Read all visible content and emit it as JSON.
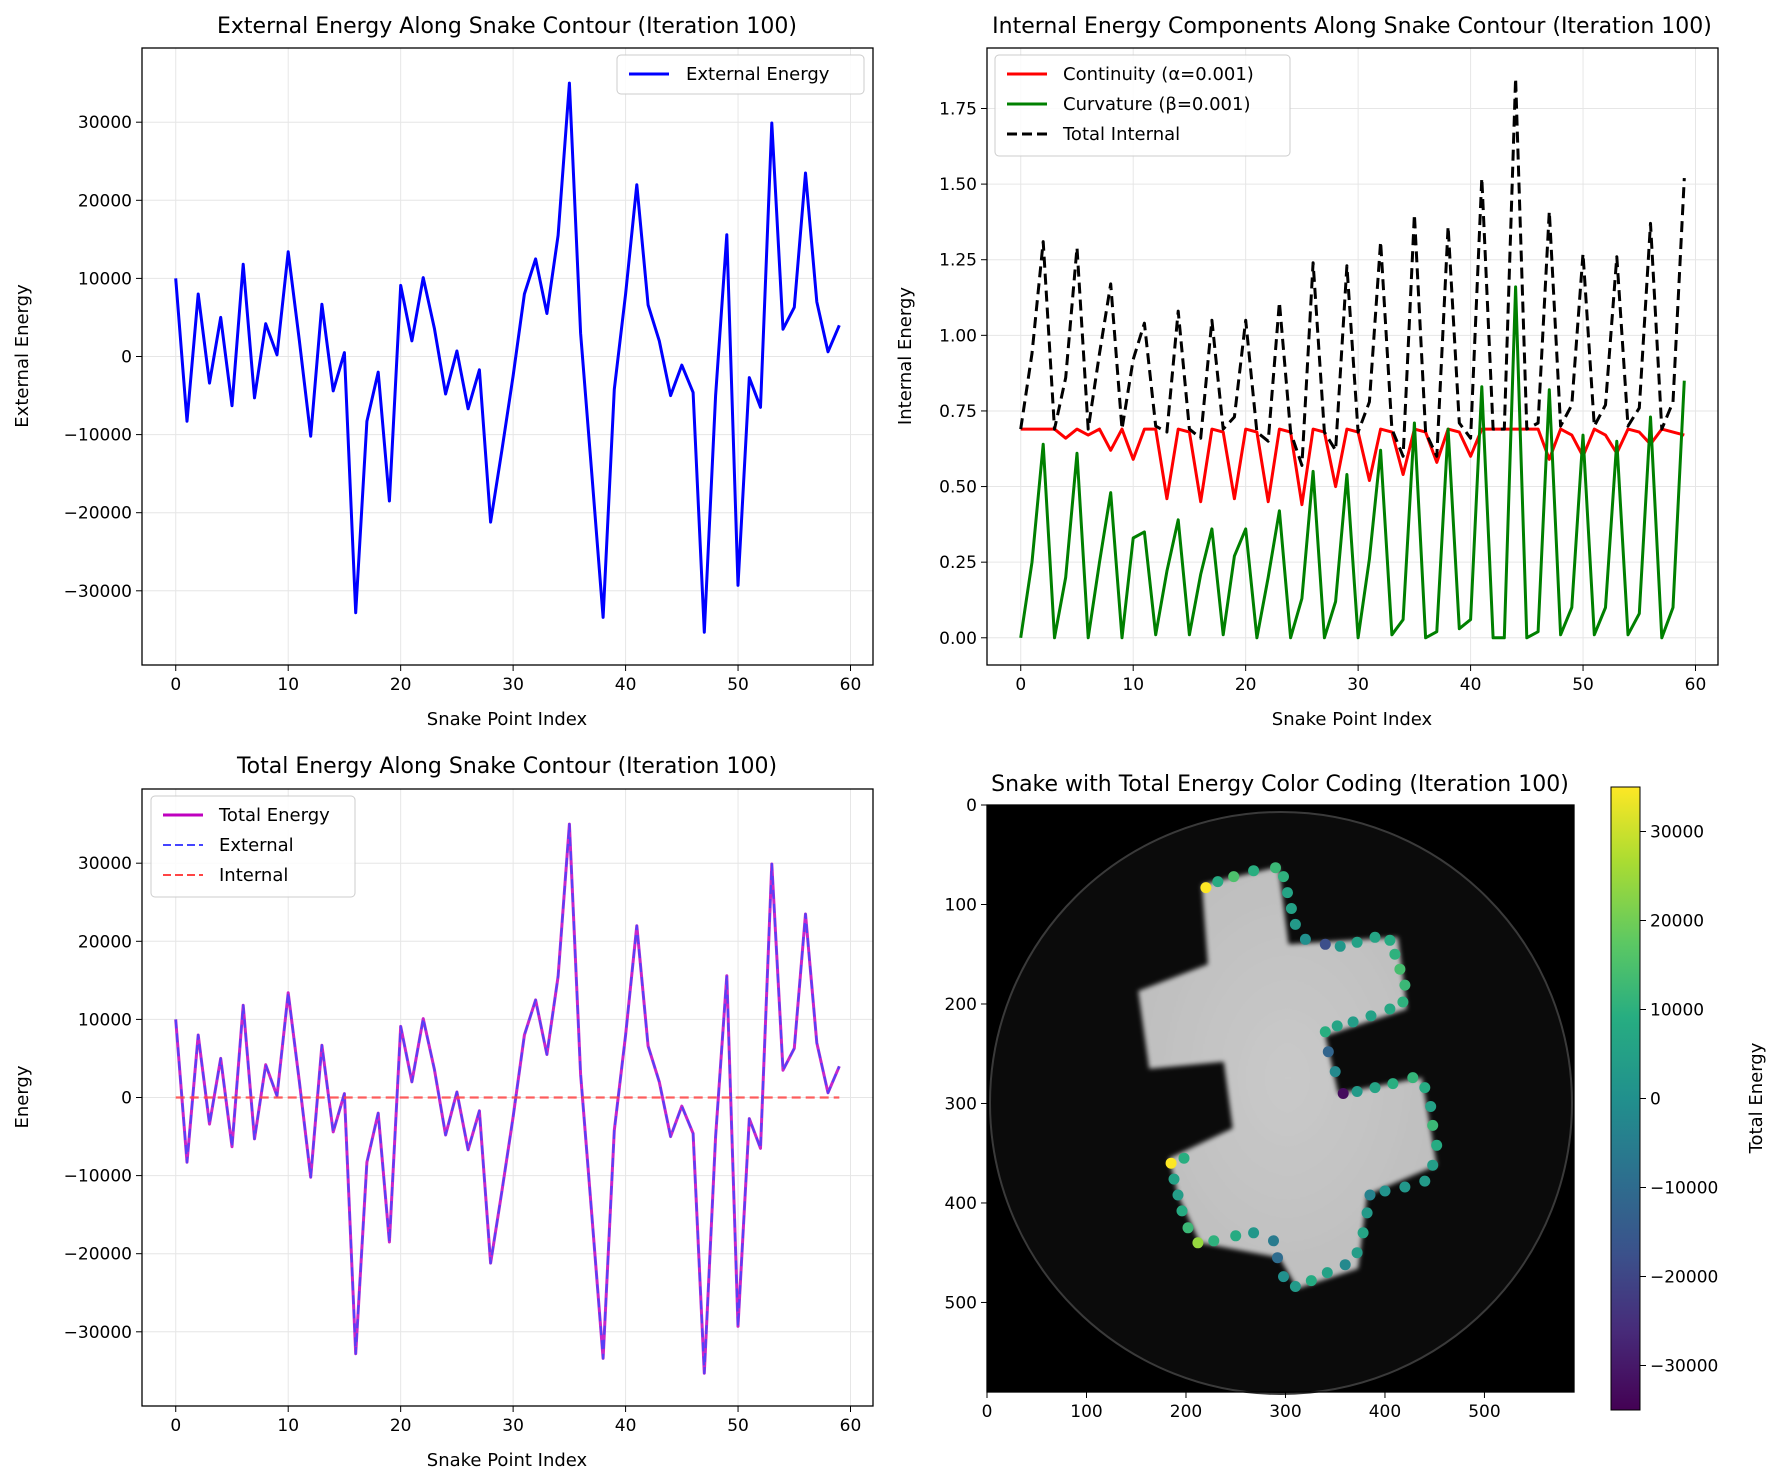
{
  "chart_data": [
    {
      "type": "line",
      "title": "External Energy Along Snake Contour (Iteration 100)",
      "xlabel": "Snake Point Index",
      "ylabel": "External Energy",
      "xlim": [
        -3,
        62
      ],
      "ylim": [
        -39500,
        39500
      ],
      "xticks": [
        0,
        10,
        20,
        30,
        40,
        50,
        60
      ],
      "yticks": [
        -30000,
        -20000,
        -10000,
        0,
        10000,
        20000,
        30000
      ],
      "grid": true,
      "legend_position": "top-right",
      "series": [
        {
          "name": "External Energy",
          "color": "#0000ff",
          "dash": "solid",
          "values": [
            10000,
            -8300,
            8000,
            -3400,
            5000,
            -6300,
            11800,
            -5300,
            4200,
            200,
            13400,
            2000,
            -10200,
            6700,
            -4400,
            500,
            -32800,
            -8300,
            -2000,
            -18500,
            9100,
            2000,
            10100,
            3600,
            -4800,
            700,
            -6700,
            -1700,
            -21200,
            -12000,
            -2500,
            8000,
            12500,
            5500,
            15500,
            35000,
            3000,
            -15000,
            -33400,
            -4200,
            8000,
            22000,
            6600,
            2000,
            -5000,
            -1100,
            -4600,
            -35300,
            -5000,
            15600,
            -29300,
            -2700,
            -6500,
            29900,
            3500,
            6300,
            23500,
            7000,
            600,
            4000
          ]
        }
      ]
    },
    {
      "type": "line",
      "title": "Internal Energy Components Along Snake Contour (Iteration 100)",
      "xlabel": "Snake Point Index",
      "ylabel": "Internal Energy",
      "xlim": [
        -3,
        62
      ],
      "ylim": [
        -0.09,
        1.95
      ],
      "xticks": [
        0,
        10,
        20,
        30,
        40,
        50,
        60
      ],
      "yticks": [
        0.0,
        0.25,
        0.5,
        0.75,
        1.0,
        1.25,
        1.5,
        1.75
      ],
      "ytick_labels": [
        "0.00",
        "0.25",
        "0.50",
        "0.75",
        "1.00",
        "1.25",
        "1.50",
        "1.75"
      ],
      "grid": true,
      "legend_position": "top-left",
      "series": [
        {
          "name": "Continuity (α=0.001)",
          "color": "#ff0000",
          "dash": "solid",
          "values": [
            0.69,
            0.69,
            0.69,
            0.69,
            0.66,
            0.69,
            0.67,
            0.69,
            0.62,
            0.69,
            0.59,
            0.69,
            0.69,
            0.46,
            0.69,
            0.68,
            0.45,
            0.69,
            0.68,
            0.46,
            0.69,
            0.68,
            0.45,
            0.69,
            0.68,
            0.44,
            0.69,
            0.68,
            0.5,
            0.69,
            0.68,
            0.52,
            0.69,
            0.68,
            0.54,
            0.69,
            0.68,
            0.58,
            0.69,
            0.68,
            0.6,
            0.69,
            0.69,
            0.69,
            0.69,
            0.69,
            0.69,
            0.59,
            0.69,
            0.67,
            0.6,
            0.69,
            0.67,
            0.61,
            0.69,
            0.68,
            0.64,
            0.69,
            0.68,
            0.67
          ]
        },
        {
          "name": "Curvature (β=0.001)",
          "color": "#008000",
          "dash": "solid",
          "values": [
            0.0,
            0.25,
            0.64,
            0.0,
            0.2,
            0.61,
            0.0,
            0.25,
            0.48,
            0.0,
            0.33,
            0.35,
            0.01,
            0.22,
            0.39,
            0.01,
            0.21,
            0.36,
            0.01,
            0.27,
            0.36,
            0.0,
            0.2,
            0.42,
            0.0,
            0.13,
            0.55,
            0.0,
            0.12,
            0.54,
            0.0,
            0.26,
            0.62,
            0.01,
            0.06,
            0.71,
            0.0,
            0.02,
            0.69,
            0.03,
            0.06,
            0.83,
            0.0,
            0.0,
            1.16,
            0.0,
            0.02,
            0.82,
            0.01,
            0.1,
            0.67,
            0.01,
            0.1,
            0.65,
            0.01,
            0.08,
            0.73,
            0.0,
            0.1,
            0.85
          ]
        },
        {
          "name": "Total Internal",
          "color": "#000000",
          "dash": "dashed",
          "values": [
            0.69,
            0.94,
            1.31,
            0.69,
            0.86,
            1.29,
            0.69,
            0.94,
            1.17,
            0.69,
            0.92,
            1.04,
            0.7,
            0.68,
            1.08,
            0.69,
            0.66,
            1.05,
            0.69,
            0.73,
            1.05,
            0.68,
            0.65,
            1.11,
            0.68,
            0.57,
            1.24,
            0.68,
            0.62,
            1.23,
            0.68,
            0.78,
            1.31,
            0.69,
            0.6,
            1.4,
            0.68,
            0.6,
            1.36,
            0.71,
            0.66,
            1.52,
            0.69,
            0.69,
            1.85,
            0.69,
            0.71,
            1.41,
            0.7,
            0.77,
            1.27,
            0.7,
            0.77,
            1.26,
            0.7,
            0.76,
            1.37,
            0.69,
            0.78,
            1.52
          ]
        }
      ]
    },
    {
      "type": "line",
      "title": "Total Energy Along Snake Contour (Iteration 100)",
      "xlabel": "Snake Point Index",
      "ylabel": "Energy",
      "xlim": [
        -3,
        62
      ],
      "ylim": [
        -39500,
        39500
      ],
      "xticks": [
        0,
        10,
        20,
        30,
        40,
        50,
        60
      ],
      "yticks": [
        -30000,
        -20000,
        -10000,
        0,
        10000,
        20000,
        30000
      ],
      "grid": true,
      "legend_position": "top-left",
      "series": [
        {
          "name": "Total Energy",
          "color": "#bf00bf",
          "dash": "solid",
          "ref": "external"
        },
        {
          "name": "External",
          "color": "#4444ff",
          "dash": "dashed",
          "ref": "external"
        },
        {
          "name": "Internal",
          "color": "#ff4444",
          "dash": "dashed",
          "ref": "internal_flat"
        }
      ]
    },
    {
      "type": "scatter",
      "title": "Snake with Total Energy Color Coding (Iteration 100)",
      "image_background": "grayscale cross-shaped object inside dark circular field",
      "xlim": [
        0,
        590
      ],
      "ylim": [
        590,
        0
      ],
      "xticks": [
        0,
        100,
        200,
        300,
        400,
        500
      ],
      "yticks": [
        0,
        100,
        200,
        300,
        400,
        500
      ],
      "colorbar": {
        "label": "Total Energy",
        "min": -35000,
        "max": 35000,
        "ticks": [
          -30000,
          -20000,
          -10000,
          0,
          10000,
          20000,
          30000
        ],
        "colormap": "viridis"
      },
      "points": [
        [
          220,
          83,
          35000
        ],
        [
          232,
          77,
          8000
        ],
        [
          248,
          72,
          15000
        ],
        [
          268,
          66,
          9000
        ],
        [
          290,
          63,
          12000
        ],
        [
          298,
          72,
          10000
        ],
        [
          302,
          88,
          6000
        ],
        [
          306,
          104,
          5000
        ],
        [
          310,
          120,
          3000
        ],
        [
          320,
          135,
          0
        ],
        [
          340,
          140,
          -18000
        ],
        [
          355,
          142,
          2000
        ],
        [
          372,
          138,
          5000
        ],
        [
          390,
          133,
          6000
        ],
        [
          405,
          136,
          8000
        ],
        [
          410,
          150,
          10000
        ],
        [
          415,
          165,
          14000
        ],
        [
          420,
          181,
          12000
        ],
        [
          418,
          198,
          10000
        ],
        [
          405,
          205,
          7000
        ],
        [
          386,
          212,
          5000
        ],
        [
          368,
          218,
          4000
        ],
        [
          352,
          222,
          6000
        ],
        [
          340,
          228,
          9000
        ],
        [
          343,
          248,
          -12000
        ],
        [
          350,
          268,
          -2000
        ],
        [
          358,
          290,
          -33000
        ],
        [
          372,
          288,
          3000
        ],
        [
          390,
          284,
          6000
        ],
        [
          408,
          280,
          9000
        ],
        [
          428,
          274,
          11000
        ],
        [
          440,
          284,
          8000
        ],
        [
          446,
          303,
          5000
        ],
        [
          448,
          322,
          12000
        ],
        [
          452,
          342,
          8000
        ],
        [
          448,
          362,
          4000
        ],
        [
          440,
          378,
          3000
        ],
        [
          420,
          384,
          2000
        ],
        [
          400,
          388,
          1000
        ],
        [
          385,
          392,
          -4000
        ],
        [
          382,
          410,
          3000
        ],
        [
          378,
          430,
          6000
        ],
        [
          372,
          450,
          4000
        ],
        [
          360,
          462,
          -2000
        ],
        [
          342,
          470,
          5000
        ],
        [
          326,
          478,
          8000
        ],
        [
          310,
          484,
          3000
        ],
        [
          298,
          474,
          0
        ],
        [
          292,
          455,
          -10000
        ],
        [
          288,
          438,
          -6000
        ],
        [
          268,
          430,
          2000
        ],
        [
          250,
          433,
          8000
        ],
        [
          228,
          438,
          10000
        ],
        [
          212,
          440,
          24000
        ],
        [
          202,
          425,
          12000
        ],
        [
          196,
          408,
          8000
        ],
        [
          192,
          392,
          4000
        ],
        [
          188,
          376,
          5000
        ],
        [
          185,
          360,
          35000
        ],
        [
          198,
          355,
          9000
        ]
      ]
    }
  ]
}
